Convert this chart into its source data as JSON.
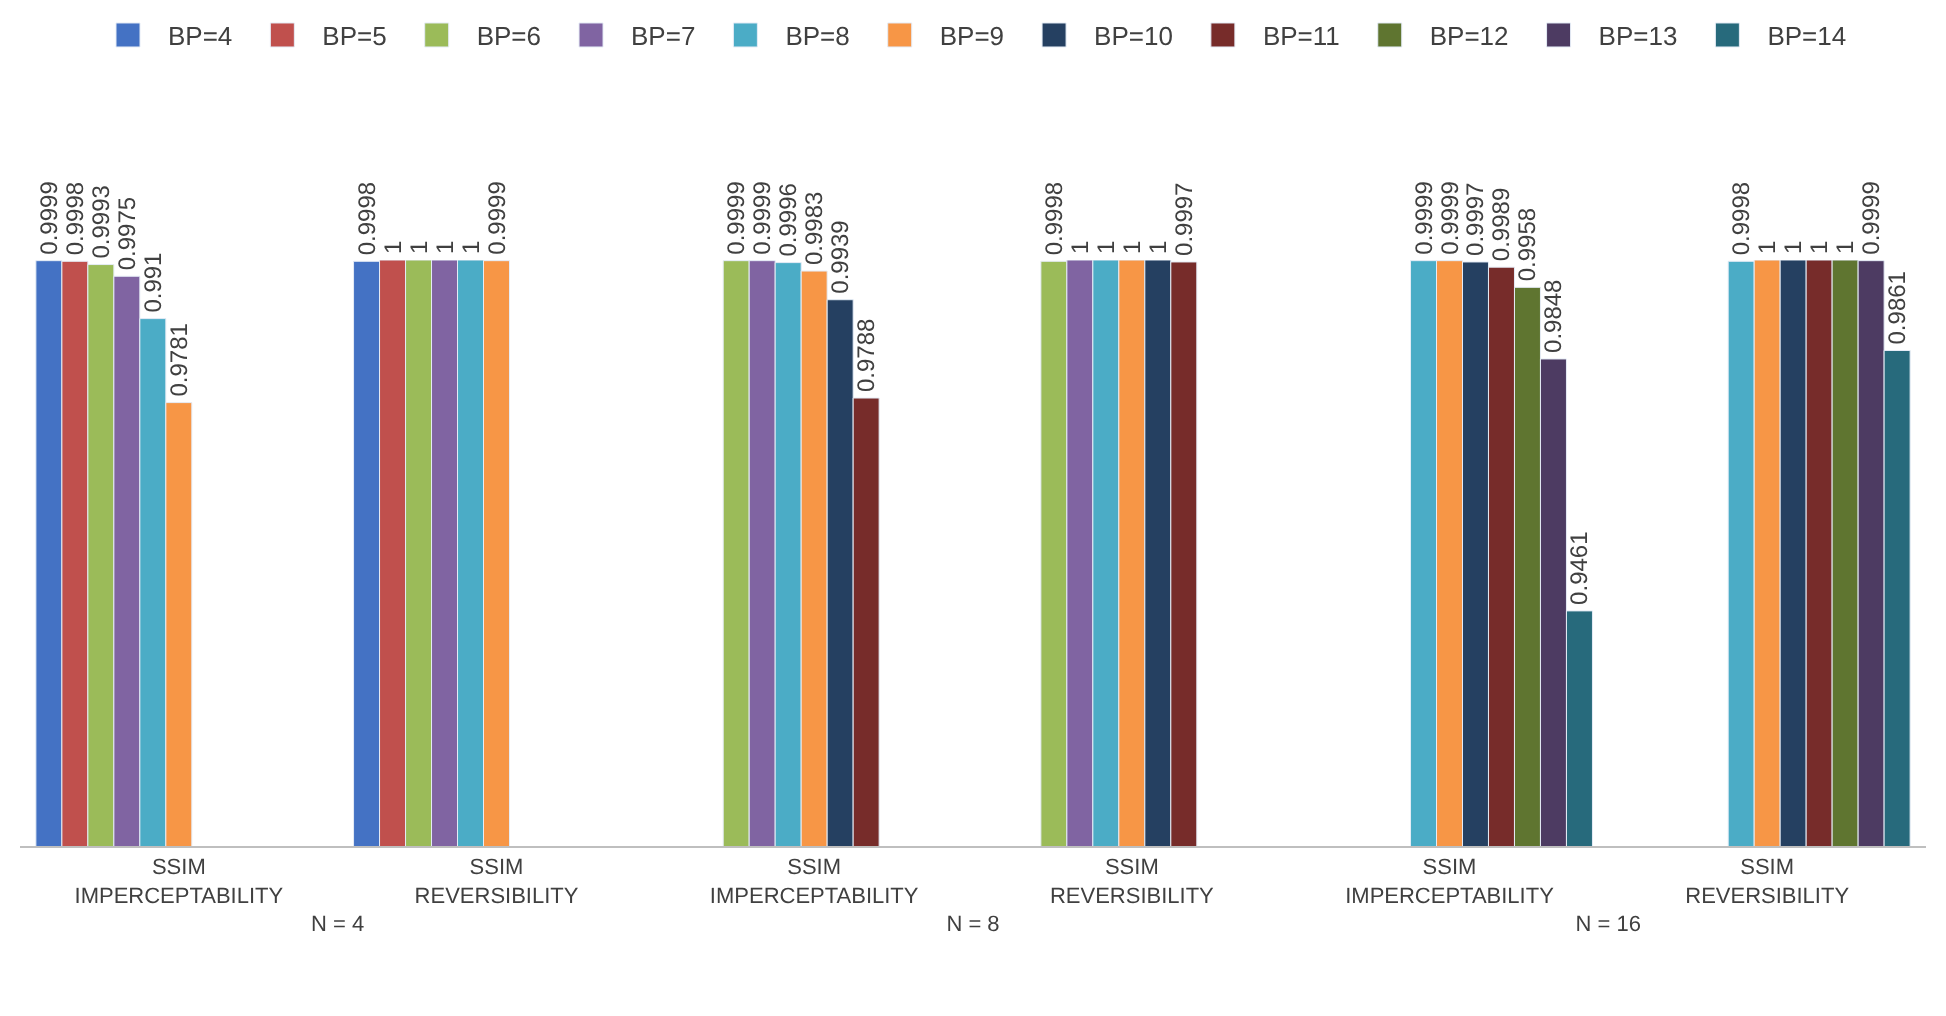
{
  "chart_data": {
    "type": "bar",
    "categories": [
      "SSIM IMPERCEPTABILITY",
      "SSIM REVERSIBILITY",
      "SSIM IMPERCEPTABILITY",
      "SSIM REVERSIBILITY",
      "SSIM IMPERCEPTABILITY",
      "SSIM REVERSIBILITY"
    ],
    "series": [
      {
        "name": "BP=4",
        "color": "#4472c4",
        "values": [
          0.9999,
          0.9998,
          null,
          null,
          null,
          null
        ]
      },
      {
        "name": "BP=5",
        "color": "#c0504d",
        "values": [
          0.9998,
          1,
          null,
          null,
          null,
          null
        ]
      },
      {
        "name": "BP=6",
        "color": "#9bbb59",
        "values": [
          0.9993,
          1,
          0.9999,
          0.9998,
          null,
          null
        ]
      },
      {
        "name": "BP=7",
        "color": "#8064a2",
        "values": [
          0.9975,
          1,
          0.9999,
          1,
          null,
          null
        ]
      },
      {
        "name": "BP=8",
        "color": "#4bacc6",
        "values": [
          0.991,
          1,
          0.9996,
          1,
          0.9999,
          0.9998
        ]
      },
      {
        "name": "BP=9",
        "color": "#f79646",
        "values": [
          0.9781,
          0.9999,
          0.9983,
          1,
          0.9999,
          1
        ]
      },
      {
        "name": "BP=10",
        "color": "#254061",
        "values": [
          null,
          null,
          0.9939,
          1,
          0.9997,
          1
        ]
      },
      {
        "name": "BP=11",
        "color": "#772c2a",
        "values": [
          null,
          null,
          0.9788,
          0.9997,
          0.9989,
          1
        ]
      },
      {
        "name": "BP=12",
        "color": "#5f7530",
        "values": [
          null,
          null,
          null,
          null,
          0.9958,
          1
        ]
      },
      {
        "name": "BP=13",
        "color": "#4d3b62",
        "values": [
          null,
          null,
          null,
          null,
          0.9848,
          0.9999
        ]
      },
      {
        "name": "BP=14",
        "color": "#276a7c",
        "values": [
          null,
          null,
          null,
          null,
          0.9461,
          0.9861
        ]
      }
    ],
    "tick_labels": "x",
    "data_labels": true,
    "legend": "top",
    "annotations": [
      "N = 4",
      "N = 8",
      "N = 16"
    ]
  }
}
